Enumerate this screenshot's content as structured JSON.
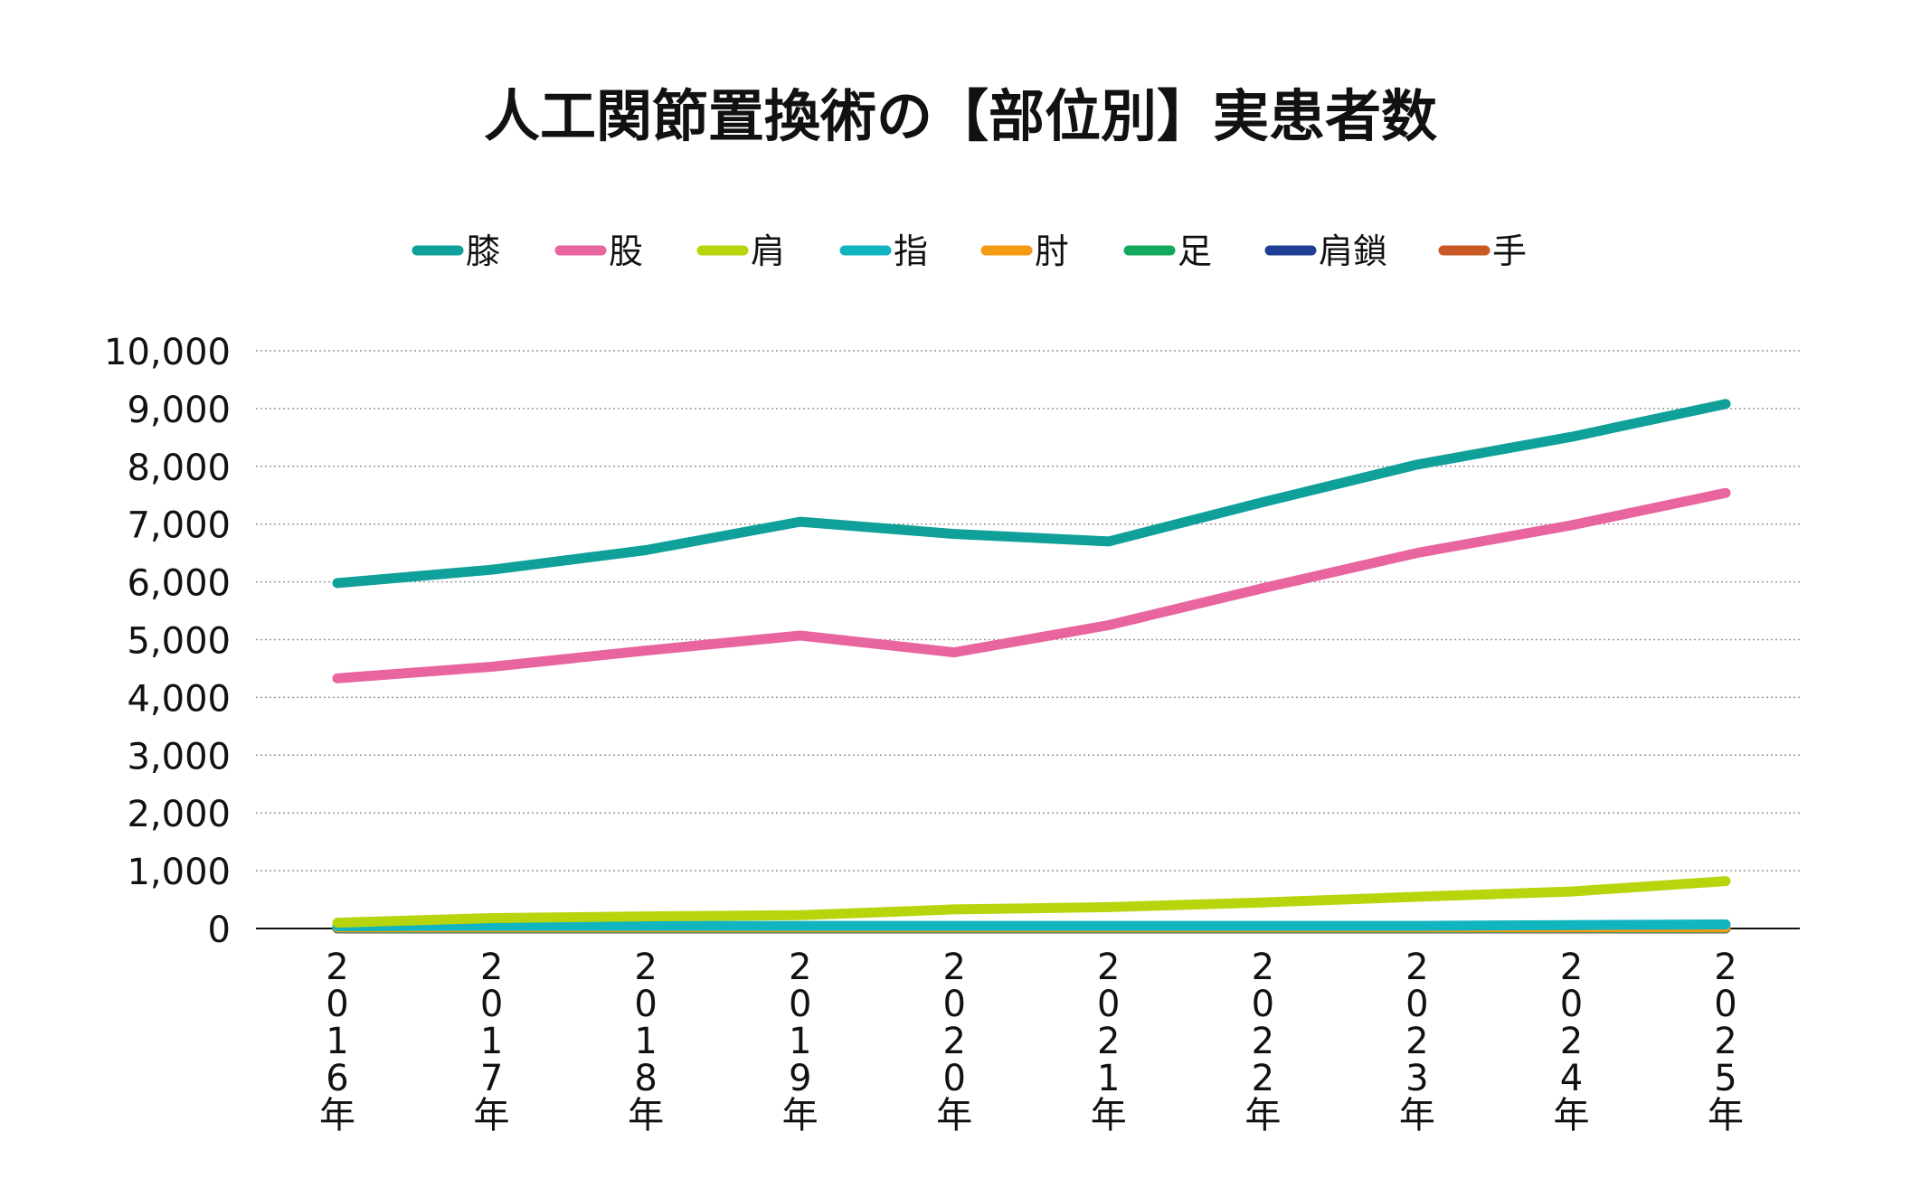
{
  "chart_data": {
    "type": "line",
    "title": "人工関節置換術の【部位別】実患者数",
    "xlabel": "",
    "ylabel": "",
    "categories": [
      "2016年",
      "2017年",
      "2018年",
      "2019年",
      "2020年",
      "2021年",
      "2022年",
      "2023年",
      "2024年",
      "2025年"
    ],
    "ylim": [
      0,
      10000
    ],
    "yticks": [
      "0",
      "1,000",
      "2,000",
      "3,000",
      "4,000",
      "5,000",
      "6,000",
      "7,000",
      "8,000",
      "9,000",
      "10,000"
    ],
    "grid": true,
    "legend_position": "top-center",
    "series": [
      {
        "name": "膝",
        "color": "#0fa09a",
        "values": [
          5980,
          6210,
          6550,
          7040,
          6830,
          6700,
          7380,
          8030,
          8510,
          9080
        ]
      },
      {
        "name": "股",
        "color": "#e8659f",
        "values": [
          4330,
          4530,
          4810,
          5070,
          4780,
          5250,
          5890,
          6500,
          6980,
          7540
        ]
      },
      {
        "name": "肩",
        "color": "#b8d40c",
        "values": [
          100,
          180,
          210,
          230,
          330,
          370,
          450,
          550,
          640,
          820
        ]
      },
      {
        "name": "指",
        "color": "#11b5c0",
        "values": [
          40,
          45,
          45,
          45,
          45,
          45,
          45,
          45,
          60,
          70
        ]
      },
      {
        "name": "肘",
        "color": "#f59a12",
        "values": [
          20,
          20,
          20,
          20,
          20,
          20,
          20,
          20,
          20,
          20
        ]
      },
      {
        "name": "足",
        "color": "#14a85f",
        "values": [
          10,
          10,
          10,
          10,
          10,
          10,
          10,
          10,
          10,
          10
        ]
      },
      {
        "name": "肩鎖",
        "color": "#1f3f97",
        "values": [
          5,
          5,
          5,
          5,
          5,
          5,
          5,
          5,
          5,
          5
        ]
      },
      {
        "name": "手",
        "color": "#c95a25",
        "values": [
          0,
          0,
          0,
          0,
          0,
          0,
          0,
          0,
          0,
          0
        ]
      }
    ]
  }
}
